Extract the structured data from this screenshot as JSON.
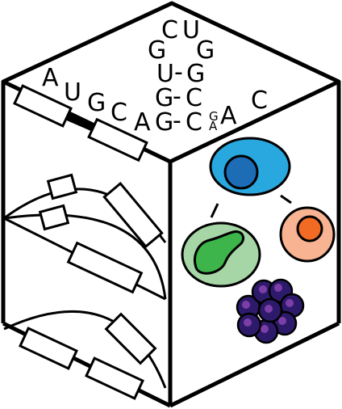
{
  "top_face": {
    "rna_sequence": {
      "strand_letters": [
        "A",
        "U",
        "G",
        "C",
        "A"
      ],
      "stem_rows": [
        {
          "left": "G",
          "dash": "-",
          "right": "C"
        },
        {
          "left": "G",
          "dash": "-",
          "right": "C"
        },
        {
          "left": "U",
          "dash": "-",
          "right": "G"
        }
      ],
      "loop_letters": [
        "G",
        "C",
        "U",
        "G"
      ],
      "bulge_letters": [
        "G",
        "A"
      ],
      "tail_letters": [
        "A",
        "C"
      ]
    }
  },
  "colors": {
    "stem_cell": "#29a8e0",
    "stem_cell_nucleus": "#1c6db5",
    "neutrophil_cell": "#a6d6a6",
    "neutrophil_nucleus": "#3db54a",
    "erythroid_cell": "#f8b393",
    "erythroid_nucleus": "#f16b24",
    "megakaryocyte_cluster": "#2e1a6b",
    "megakaryocyte_highlight": "#7c3fa8",
    "outline": "#000000"
  }
}
